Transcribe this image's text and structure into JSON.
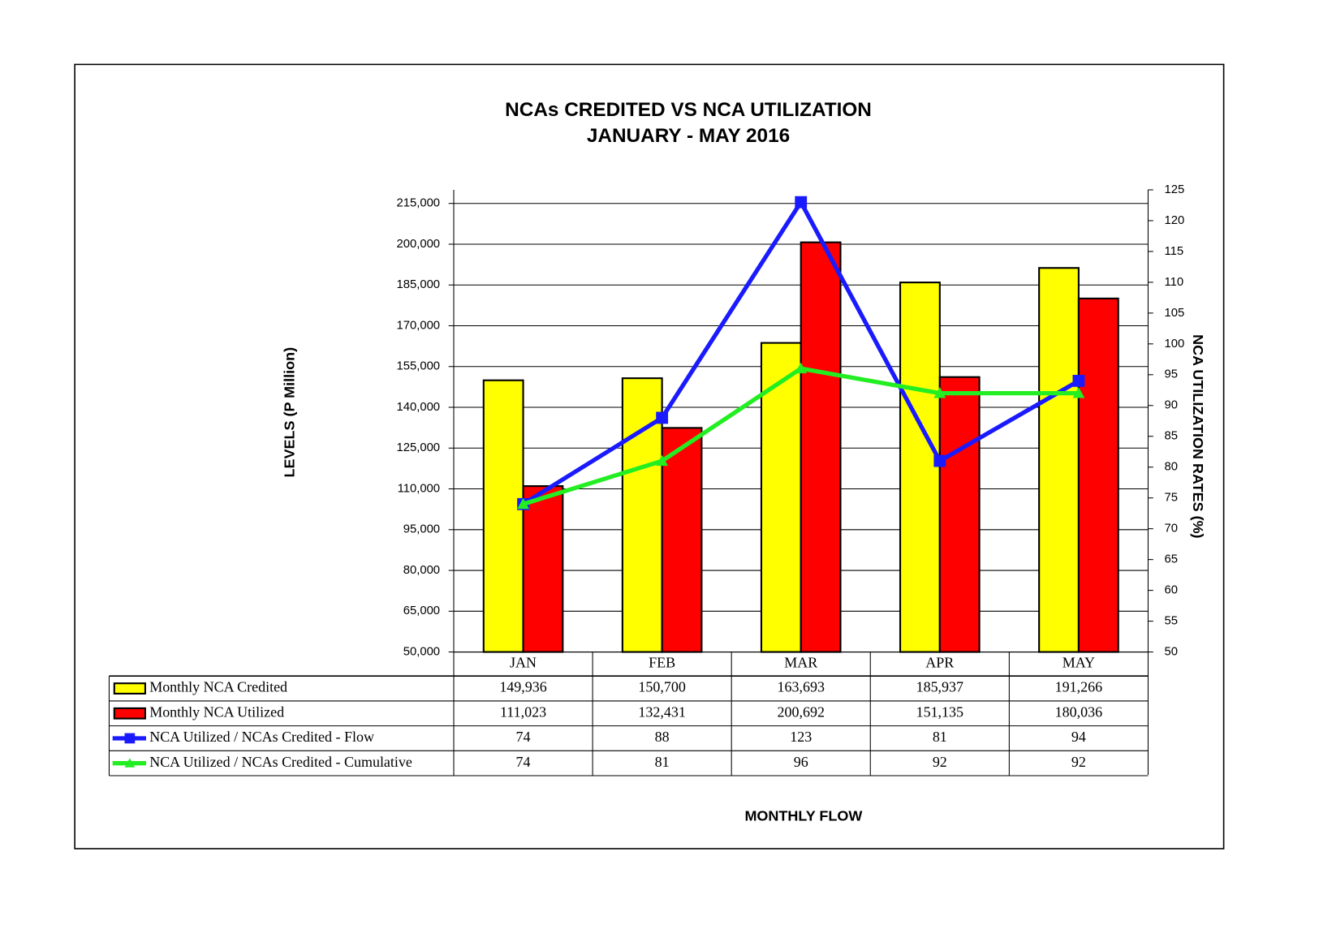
{
  "chart_data": {
    "type": "bar",
    "title": "NCAs CREDITED VS NCA UTILIZATION",
    "subtitle": "JANUARY - MAY 2016",
    "y_label": "LEVELS (P Million)",
    "y2_label": "NCA UTILIZATION RATES (%)",
    "x_label": "MONTHLY FLOW",
    "categories": [
      "JAN",
      "FEB",
      "MAR",
      "APR",
      "MAY"
    ],
    "series": [
      {
        "name": "Monthly NCA Credited",
        "type": "bar",
        "color": "#ffff00",
        "values": [
          149936,
          150700,
          163693,
          185937,
          191266
        ],
        "value_labels": [
          "149,936",
          "150,700",
          "163,693",
          "185,937",
          "191,266"
        ]
      },
      {
        "name": "Monthly NCA Utilized",
        "type": "bar",
        "color": "#ff0000",
        "values": [
          111023,
          132431,
          200692,
          151135,
          180036
        ],
        "value_labels": [
          "111,023",
          "132,431",
          "200,692",
          "151,135",
          "180,036"
        ]
      },
      {
        "name": "NCA Utilized / NCAs Credited - Flow",
        "type": "line",
        "axis": "y2",
        "marker": "square",
        "color": "#1a1aff",
        "values": [
          74,
          88,
          123,
          81,
          94
        ]
      },
      {
        "name": "NCA Utilized / NCAs Credited - Cumulative",
        "type": "line",
        "axis": "y2",
        "marker": "triangle",
        "color": "#22ee22",
        "values": [
          74,
          81,
          96,
          92,
          92
        ]
      }
    ],
    "ylim": [
      50000,
      220000
    ],
    "yticks": [
      {
        "value": 50000,
        "label": "50,000"
      },
      {
        "value": 65000,
        "label": "65,000"
      },
      {
        "value": 80000,
        "label": "80,000"
      },
      {
        "value": 95000,
        "label": "95,000"
      },
      {
        "value": 110000,
        "label": "110,000"
      },
      {
        "value": 125000,
        "label": "125,000"
      },
      {
        "value": 140000,
        "label": "140,000"
      },
      {
        "value": 155000,
        "label": "155,000"
      },
      {
        "value": 170000,
        "label": "170,000"
      },
      {
        "value": 185000,
        "label": "185,000"
      },
      {
        "value": 200000,
        "label": "200,000"
      },
      {
        "value": 215000,
        "label": "215,000"
      }
    ],
    "y2lim": [
      50,
      125
    ],
    "y2ticks": [
      50,
      55,
      60,
      65,
      70,
      75,
      80,
      85,
      90,
      95,
      100,
      105,
      110,
      115,
      120,
      125
    ],
    "grid": true
  }
}
